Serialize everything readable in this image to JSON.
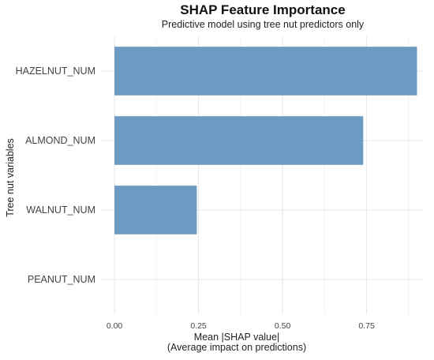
{
  "chart_data": {
    "type": "bar",
    "orientation": "horizontal",
    "title": "SHAP Feature Importance",
    "subtitle": "Predictive model using tree nut predictors only",
    "categories": [
      "HAZELNUT_NUM",
      "ALMOND_NUM",
      "WALNUT_NUM",
      "PEANUT_NUM"
    ],
    "values": [
      0.9,
      0.74,
      0.245,
      0.0
    ],
    "xlabel_lines": [
      "Mean |SHAP value|",
      "(Average impact on predictions)"
    ],
    "ylabel": "Tree nut variables",
    "xticks": [
      0,
      0.25,
      0.5,
      0.75
    ],
    "xtick_labels": [
      "0.00",
      "0.25",
      "0.50",
      "0.75"
    ],
    "xlim": [
      -0.04,
      0.92
    ],
    "bar_color": "#6b9bc3",
    "grid": true
  }
}
